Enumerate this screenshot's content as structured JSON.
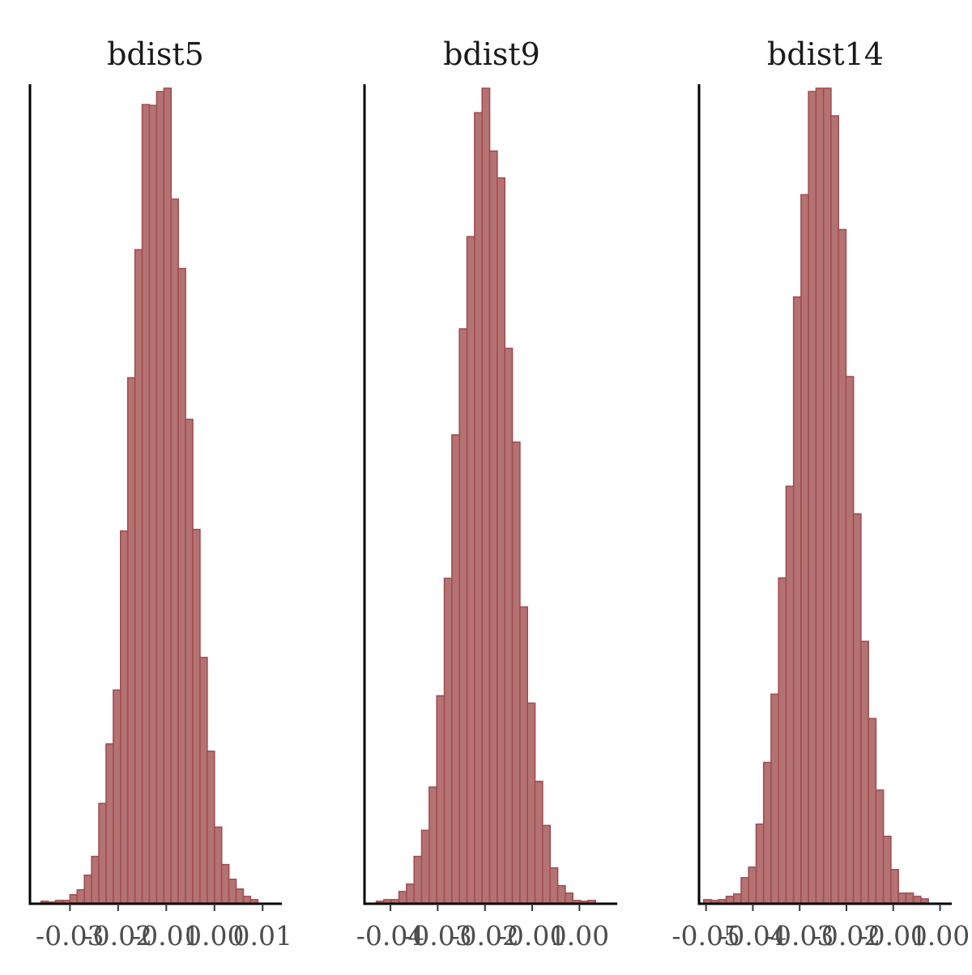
{
  "chart_data": [
    {
      "type": "bar",
      "title": "bdist5",
      "xlabel": "",
      "ylabel": "",
      "xlim": [
        -0.0383,
        0.014
      ],
      "bin_start": -0.036,
      "bin_width": 0.0015,
      "counts": [
        3,
        2,
        4,
        4,
        11,
        17,
        35,
        58,
        123,
        196,
        262,
        457,
        645,
        802,
        980,
        979,
        996,
        1000,
        864,
        779,
        594,
        459,
        302,
        187,
        94,
        48,
        30,
        18,
        9,
        5
      ],
      "x_ticks": [
        -0.03,
        -0.02,
        -0.01,
        0.0,
        0.01
      ],
      "x_tick_labels": [
        "-0.03",
        "-0.02",
        "-0.01",
        "0.00",
        "0.01"
      ],
      "grid": false
    },
    {
      "type": "bar",
      "title": "bdist9",
      "xlabel": "",
      "ylabel": "",
      "xlim": [
        -0.0455,
        0.008
      ],
      "bin_start": -0.043,
      "bin_width": 0.0016,
      "counts": [
        3,
        5,
        5,
        15,
        24,
        58,
        90,
        143,
        255,
        399,
        575,
        705,
        818,
        970,
        1000,
        923,
        890,
        681,
        566,
        364,
        246,
        150,
        96,
        44,
        22,
        13,
        4,
        3,
        4
      ],
      "x_ticks": [
        -0.04,
        -0.03,
        -0.02,
        -0.01,
        0.0
      ],
      "x_tick_labels": [
        "-0.04",
        "-0.03",
        "-0.02",
        "-0.01",
        "0.00"
      ],
      "grid": false
    },
    {
      "type": "bar",
      "title": "bdist14",
      "xlabel": "",
      "ylabel": "",
      "xlim": [
        -0.0515,
        0.0025
      ],
      "bin_start": -0.0505,
      "bin_width": 0.0016,
      "counts": [
        5,
        4,
        5,
        9,
        12,
        32,
        45,
        98,
        174,
        258,
        401,
        514,
        747,
        873,
        1000,
        1004,
        1004,
        970,
        830,
        649,
        480,
        323,
        228,
        140,
        83,
        42,
        13,
        13,
        9,
        6
      ],
      "x_ticks": [
        -0.05,
        -0.04,
        -0.03,
        -0.02,
        -0.01,
        0.0
      ],
      "x_tick_labels": [
        "-0.05",
        "-0.04",
        "-0.03",
        "-0.02",
        "-0.01",
        "0.00"
      ],
      "grid": false
    }
  ],
  "colors": {
    "bar_fill": "#b47373",
    "bar_stroke": "#a34c50",
    "axis": "#000000"
  }
}
